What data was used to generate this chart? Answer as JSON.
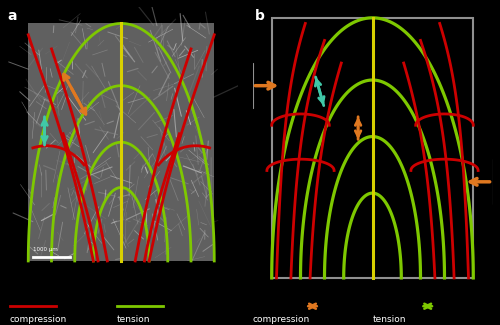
{
  "bg_color": "#000000",
  "panel_a_label": "a",
  "panel_b_label": "b",
  "label_color": "#ffffff",
  "label_fontsize": 10,
  "green_color": "#7ec800",
  "red_color": "#cc0000",
  "orange_color": "#e07820",
  "cyan_color": "#40c8a8",
  "yellow_color": "#d8d000",
  "ct_bg": "#606060",
  "border_color": "#909090",
  "hatch_color": "#909090",
  "scale_bar_label": "1000 µm",
  "legend_compression": "compression",
  "legend_tension": "tension"
}
